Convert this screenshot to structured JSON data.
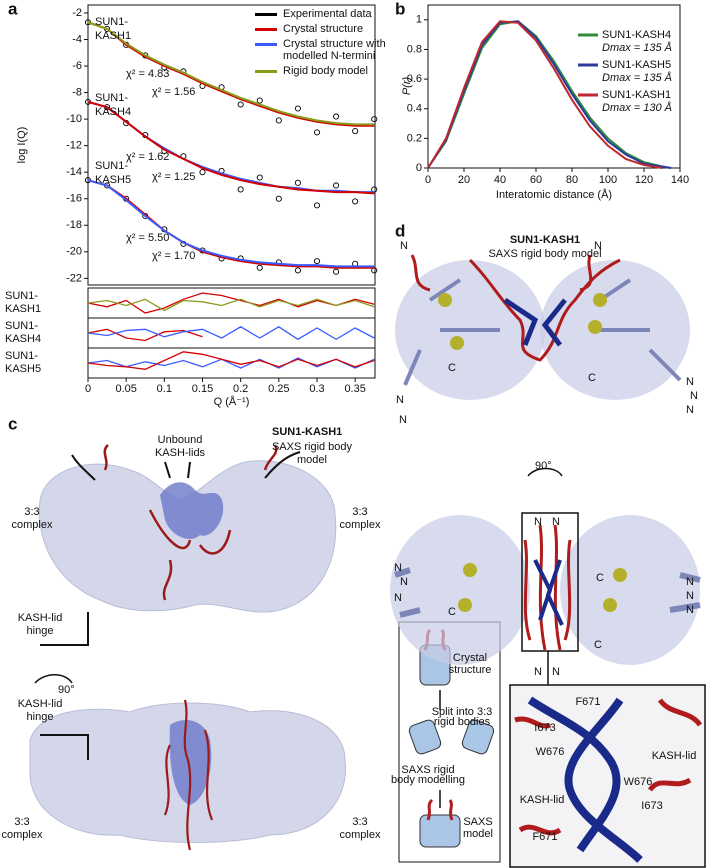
{
  "chart_data": [
    {
      "type": "line",
      "panel_label": "a",
      "ylabel": "log I(Q)",
      "xlim": [
        0,
        0.376
      ],
      "ylim": [
        -22.5,
        -1.4
      ],
      "yticks": [
        -2,
        -4,
        -6,
        -8,
        -10,
        -12,
        -14,
        -16,
        -18,
        -20,
        -22
      ],
      "x": [
        0,
        0.025,
        0.05,
        0.075,
        0.1,
        0.125,
        0.15,
        0.175,
        0.2,
        0.225,
        0.25,
        0.275,
        0.3,
        0.325,
        0.35,
        0.375
      ],
      "series": [
        {
          "name": "Experimental data",
          "color": "#000000",
          "marker": "circle",
          "values": [
            -2.7,
            -3.2,
            -4.4,
            -5.2,
            -6.1,
            -6.4,
            -7.5,
            -7.6,
            -8.9,
            -8.6,
            -10.1,
            -9.2,
            -11.0,
            -9.8,
            -10.9,
            -10.0
          ]
        },
        {
          "name": "Experimental data",
          "color": "#000000",
          "marker": "circle",
          "values": [
            -8.7,
            -9.1,
            -10.3,
            -11.2,
            -12.4,
            -12.8,
            -14.0,
            -13.9,
            -15.3,
            -14.4,
            -16.0,
            -14.8,
            -16.5,
            -15.0,
            -16.2,
            -15.3
          ]
        },
        {
          "name": "Experimental data",
          "color": "#000000",
          "marker": "circle",
          "values": [
            -14.6,
            -15.0,
            -16.0,
            -17.3,
            -18.3,
            -19.4,
            -19.9,
            -20.5,
            -20.5,
            -21.2,
            -20.8,
            -21.4,
            -20.7,
            -21.5,
            -20.9,
            -21.4
          ]
        },
        {
          "name": "Crystal structure",
          "color": "#d40000",
          "values": [
            -2.7,
            -3.2,
            -4.4,
            -5.3,
            -6.0,
            -6.6,
            -7.3,
            -7.9,
            -8.5,
            -9.0,
            -9.5,
            -9.9,
            -10.2,
            -10.4,
            -10.5,
            -10.5
          ]
        },
        {
          "name": "Crystal structure with modelled N-termini",
          "color": "#3b5bff",
          "values": [
            -8.7,
            -9.1,
            -10.2,
            -11.3,
            -12.2,
            -13.0,
            -13.6,
            -14.1,
            -14.5,
            -14.8,
            -15.1,
            -15.2,
            -15.4,
            -15.4,
            -15.5,
            -15.5
          ]
        },
        {
          "name": "Rigid body model",
          "color": "#8a9a1b",
          "values": [
            -2.7,
            -3.2,
            -4.3,
            -5.2,
            -5.9,
            -6.5,
            -7.2,
            -7.8,
            -8.4,
            -8.9,
            -9.4,
            -9.8,
            -10.1,
            -10.3,
            -10.4,
            -10.4
          ]
        },
        {
          "name": "Crystal structure",
          "color": "#d40000",
          "values": [
            -8.7,
            -9.1,
            -10.2,
            -11.3,
            -12.3,
            -13.0,
            -13.7,
            -14.2,
            -14.6,
            -14.9,
            -15.1,
            -15.3,
            -15.4,
            -15.5,
            -15.5,
            -15.6
          ]
        },
        {
          "name": "Crystal structure",
          "color": "#d40000",
          "values": [
            -14.6,
            -15.0,
            -16.0,
            -17.2,
            -18.4,
            -19.3,
            -20.0,
            -20.4,
            -20.7,
            -20.9,
            -21.0,
            -21.1,
            -21.1,
            -21.2,
            -21.2,
            -21.2
          ]
        },
        {
          "name": "Crystal structure with modelled N-termini",
          "color": "#3b5bff",
          "values": [
            -14.6,
            -15.0,
            -16.1,
            -17.3,
            -18.4,
            -19.3,
            -19.9,
            -20.3,
            -20.6,
            -20.8,
            -20.9,
            -21.0,
            -21.0,
            -21.1,
            -21.1,
            -21.1
          ]
        }
      ],
      "sample_labels": [
        [
          "SUN1-",
          "KASH1"
        ],
        [
          "SUN1-",
          "KASH4"
        ],
        [
          "SUN1-",
          "KASH5"
        ]
      ],
      "annotations": [
        {
          "text": "χ² = 4.83",
          "color": "#d40000"
        },
        {
          "text": "χ² = 1.56",
          "color": "#8a9a1b"
        },
        {
          "text": "χ² = 1.62",
          "color": "#d40000"
        },
        {
          "text": "χ² = 1.25",
          "color": "#3b5bff"
        },
        {
          "text": "χ² = 5.50",
          "color": "#d40000"
        },
        {
          "text": "χ² = 1.70",
          "color": "#3b5bff"
        }
      ],
      "residuals": {
        "xlabel": "Q (Å⁻¹)",
        "xlim": [
          0,
          0.376
        ],
        "ylim": [
          -1.2,
          1.2
        ],
        "xticks": [
          0,
          0.05,
          0.1,
          0.15,
          0.2,
          0.25,
          0.3,
          0.35
        ],
        "x": [
          0,
          0.025,
          0.05,
          0.075,
          0.1,
          0.125,
          0.15,
          0.175,
          0.2,
          0.225,
          0.25,
          0.275,
          0.3,
          0.325,
          0.35,
          0.375
        ],
        "panels": [
          {
            "label": [
              "SUN1-",
              "KASH1"
            ],
            "series": [
              {
                "color": "#d40000",
                "values": [
                  0,
                  -0.3,
                  0.2,
                  -0.8,
                  -0.4,
                  0.3,
                  0.8,
                  0.6,
                  0.2,
                  -0.2,
                  0.3,
                  -0.3,
                  0.2,
                  -0.2,
                  0.3,
                  -0.1
                ]
              },
              {
                "color": "#8a9a1b",
                "values": [
                  0,
                  0.2,
                  -0.2,
                  0.3,
                  -0.6,
                  0.2,
                  0.1,
                  -0.2,
                  0.3,
                  -0.3,
                  0.2,
                  -0.2,
                  0.3,
                  -0.2,
                  0.2,
                  -0.3
                ]
              }
            ]
          },
          {
            "label": [
              "SUN1-",
              "KASH4"
            ],
            "series": [
              {
                "color": "#d40000",
                "values": [
                  0,
                  0.3,
                  -0.4,
                  -0.6,
                  0.1,
                  0.2,
                  -0.3,
                  null,
                  null,
                  null,
                  null,
                  null,
                  null,
                  null,
                  null,
                  null
                ]
              },
              {
                "color": "#3b5bff",
                "values": [
                  0,
                  -0.2,
                  0.2,
                  0.3,
                  -0.3,
                  0.1,
                  0.3,
                  -0.4,
                  0.5,
                  -0.4,
                  0.5,
                  -0.5,
                  0.4,
                  -0.5,
                  0.4,
                  -0.4
                ]
              }
            ]
          },
          {
            "label": [
              "SUN1-",
              "KASH5"
            ],
            "series": [
              {
                "color": "#3b5bff",
                "values": [
                  0,
                  0.2,
                  -0.3,
                  0.1,
                  -0.2,
                  0.2,
                  -0.3,
                  0.3,
                  -0.4,
                  0.3,
                  -0.4,
                  0.4,
                  -0.3,
                  0.3,
                  -0.4,
                  0.3
                ]
              },
              {
                "color": "#d40000",
                "values": [
                  0,
                  -0.2,
                  -0.3,
                  -0.5,
                  0.2,
                  0.9,
                  0.7,
                  0.3,
                  -0.1,
                  0.2,
                  -0.3,
                  0.3,
                  -0.2,
                  0.3,
                  -0.3,
                  0.2
                ]
              }
            ]
          }
        ]
      }
    },
    {
      "type": "line",
      "panel_label": "b",
      "ylabel": "P(r)",
      "xlabel": "Interatomic distance (Å)",
      "xlim": [
        0,
        140
      ],
      "ylim": [
        0,
        1.1
      ],
      "xticks": [
        0,
        20,
        40,
        60,
        80,
        100,
        120,
        140
      ],
      "yticks": [
        0,
        0.2,
        0.4,
        0.6,
        0.8,
        1
      ],
      "x": [
        0,
        10,
        20,
        30,
        40,
        50,
        60,
        70,
        80,
        90,
        100,
        110,
        120,
        130,
        135
      ],
      "series": [
        {
          "name": "SUN1-KASH4",
          "dmax_label": "Dmax = 135 Å",
          "color": "#2e8b3a",
          "values": [
            0,
            0.18,
            0.5,
            0.81,
            0.97,
            0.99,
            0.89,
            0.72,
            0.52,
            0.34,
            0.2,
            0.1,
            0.04,
            0.01,
            0
          ]
        },
        {
          "name": "SUN1-KASH5",
          "dmax_label": "Dmax = 135 Å",
          "color": "#2b3a9b",
          "values": [
            0,
            0.19,
            0.52,
            0.83,
            0.98,
            0.99,
            0.88,
            0.7,
            0.5,
            0.32,
            0.18,
            0.09,
            0.03,
            0.01,
            0
          ]
        },
        {
          "name": "SUN1-KASH1",
          "dmax_label": "Dmax = 130 Å",
          "color": "#c0282d",
          "values": [
            0,
            0.2,
            0.54,
            0.85,
            0.99,
            0.98,
            0.86,
            0.67,
            0.46,
            0.28,
            0.15,
            0.06,
            0.02,
            0,
            null
          ]
        }
      ]
    }
  ],
  "panel_c": {
    "label": "c",
    "title": "SUN1-KASH1",
    "subtitle": [
      "SAXS rigid body",
      "model"
    ],
    "unbound": [
      "Unbound",
      "KASH-lids"
    ],
    "complex_labels": [
      [
        "3:3",
        "complex"
      ],
      [
        "3:3",
        "complex"
      ],
      [
        "3:3",
        "complex"
      ],
      [
        "3:3",
        "complex"
      ]
    ],
    "hinge_labels": [
      [
        "KASH-lid",
        "hinge"
      ],
      [
        "KASH-lid",
        "hinge"
      ]
    ],
    "rotation": "90°",
    "inset": {
      "crystal": [
        "Crystal",
        "structure"
      ],
      "split": [
        "Split into 3:3",
        "rigid bodies"
      ],
      "modelling": [
        "SAXS rigid",
        "body modelling"
      ],
      "saxs_model": [
        "SAXS",
        "model"
      ]
    }
  },
  "panel_d": {
    "label": "d",
    "title": "SUN1-KASH1",
    "subtitle": "SAXS rigid body model",
    "rotation": "90°",
    "termini": [
      "N",
      "N",
      "C",
      "C",
      "N",
      "N",
      "N",
      "N",
      "N",
      "N",
      "N",
      "N",
      "N",
      "N",
      "C",
      "C",
      "C",
      "N",
      "N",
      "N",
      "N",
      "N"
    ],
    "zoom_labels": [
      "F671",
      "I673",
      "W676",
      "KASH-lid",
      "W676",
      "KASH-lid",
      "I673",
      "F671"
    ]
  }
}
